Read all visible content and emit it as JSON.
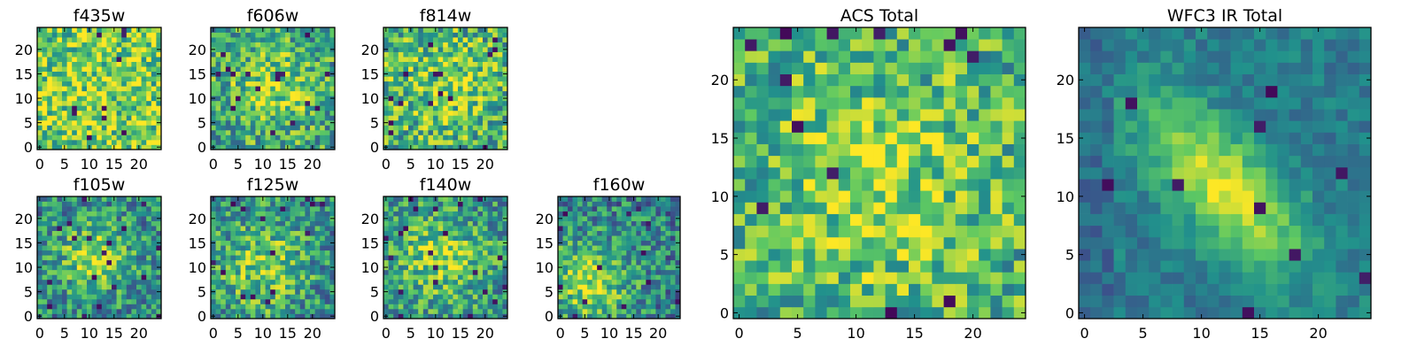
{
  "figure": {
    "description": "",
    "colormap": [
      "#440154",
      "#3b528b",
      "#21918c",
      "#5ec962",
      "#fde725"
    ]
  },
  "chart_data": [
    {
      "type": "heatmap",
      "title": "f435w",
      "grid_size": 25,
      "xlim": [
        -0.5,
        24.5
      ],
      "ylim": [
        -0.5,
        24.5
      ],
      "x_ticks": [
        0,
        5,
        10,
        15,
        20
      ],
      "y_ticks": [
        0,
        5,
        10,
        15,
        20
      ],
      "seed": 11,
      "center": [
        12,
        12
      ],
      "sigma": 12,
      "peak": 0.08,
      "base": 0.72,
      "noise": 0.32
    },
    {
      "type": "heatmap",
      "title": "f606w",
      "grid_size": 25,
      "xlim": [
        -0.5,
        24.5
      ],
      "ylim": [
        -0.5,
        24.5
      ],
      "x_ticks": [
        0,
        5,
        10,
        15,
        20
      ],
      "y_ticks": [
        0,
        5,
        10,
        15,
        20
      ],
      "seed": 23,
      "center": [
        12,
        12
      ],
      "sigma": 6,
      "peak": 0.25,
      "base": 0.58,
      "noise": 0.3
    },
    {
      "type": "heatmap",
      "title": "f814w",
      "grid_size": 25,
      "xlim": [
        -0.5,
        24.5
      ],
      "ylim": [
        -0.5,
        24.5
      ],
      "x_ticks": [
        0,
        5,
        10,
        15,
        20
      ],
      "y_ticks": [
        0,
        5,
        10,
        15,
        20
      ],
      "seed": 37,
      "center": [
        12,
        13
      ],
      "sigma": 7,
      "peak": 0.18,
      "base": 0.62,
      "noise": 0.32
    },
    {
      "type": "heatmap",
      "title": "f105w",
      "grid_size": 25,
      "xlim": [
        -0.5,
        24.5
      ],
      "ylim": [
        -0.5,
        24.5
      ],
      "x_ticks": [
        0,
        5,
        10,
        15,
        20
      ],
      "y_ticks": [
        0,
        5,
        10,
        15,
        20
      ],
      "seed": 41,
      "center": [
        11,
        12
      ],
      "sigma": 5,
      "peak": 0.35,
      "base": 0.48,
      "noise": 0.28
    },
    {
      "type": "heatmap",
      "title": "f125w",
      "grid_size": 25,
      "xlim": [
        -0.5,
        24.5
      ],
      "ylim": [
        -0.5,
        24.5
      ],
      "x_ticks": [
        0,
        5,
        10,
        15,
        20
      ],
      "y_ticks": [
        0,
        5,
        10,
        15,
        20
      ],
      "seed": 53,
      "center": [
        10,
        10
      ],
      "sigma": 6,
      "peak": 0.3,
      "base": 0.5,
      "noise": 0.3
    },
    {
      "type": "heatmap",
      "title": "f140w",
      "grid_size": 25,
      "xlim": [
        -0.5,
        24.5
      ],
      "ylim": [
        -0.5,
        24.5
      ],
      "x_ticks": [
        0,
        5,
        10,
        15,
        20
      ],
      "y_ticks": [
        0,
        5,
        10,
        15,
        20
      ],
      "seed": 67,
      "center": [
        11,
        12
      ],
      "sigma": 6,
      "peak": 0.3,
      "base": 0.52,
      "noise": 0.28
    },
    {
      "type": "heatmap",
      "title": "f160w",
      "grid_size": 25,
      "xlim": [
        -0.5,
        24.5
      ],
      "ylim": [
        -0.5,
        24.5
      ],
      "x_ticks": [
        0,
        5,
        10,
        15,
        20
      ],
      "y_ticks": [
        0,
        5,
        10,
        15,
        20
      ],
      "seed": 79,
      "center": [
        6,
        7
      ],
      "sigma": 6,
      "peak": 0.38,
      "base": 0.45,
      "noise": 0.28
    },
    {
      "type": "heatmap",
      "title": "ACS Total",
      "grid_size": 25,
      "xlim": [
        -0.5,
        24.5
      ],
      "ylim": [
        -0.5,
        24.5
      ],
      "x_ticks": [
        0,
        5,
        10,
        15,
        20
      ],
      "y_ticks": [
        0,
        5,
        10,
        15,
        20
      ],
      "seed": 97,
      "center": [
        12,
        11
      ],
      "sigma": 7,
      "peak": 0.2,
      "base": 0.62,
      "noise": 0.28
    },
    {
      "type": "heatmap",
      "title": "WFC3 IR Total",
      "grid_size": 25,
      "xlim": [
        -0.5,
        24.5
      ],
      "ylim": [
        -0.5,
        24.5
      ],
      "x_ticks": [
        0,
        5,
        10,
        15,
        20
      ],
      "y_ticks": [
        0,
        5,
        10,
        15,
        20
      ],
      "seed": 131,
      "diagonal": true,
      "peak": 0.42,
      "base": 0.42,
      "noise": 0.22
    }
  ]
}
